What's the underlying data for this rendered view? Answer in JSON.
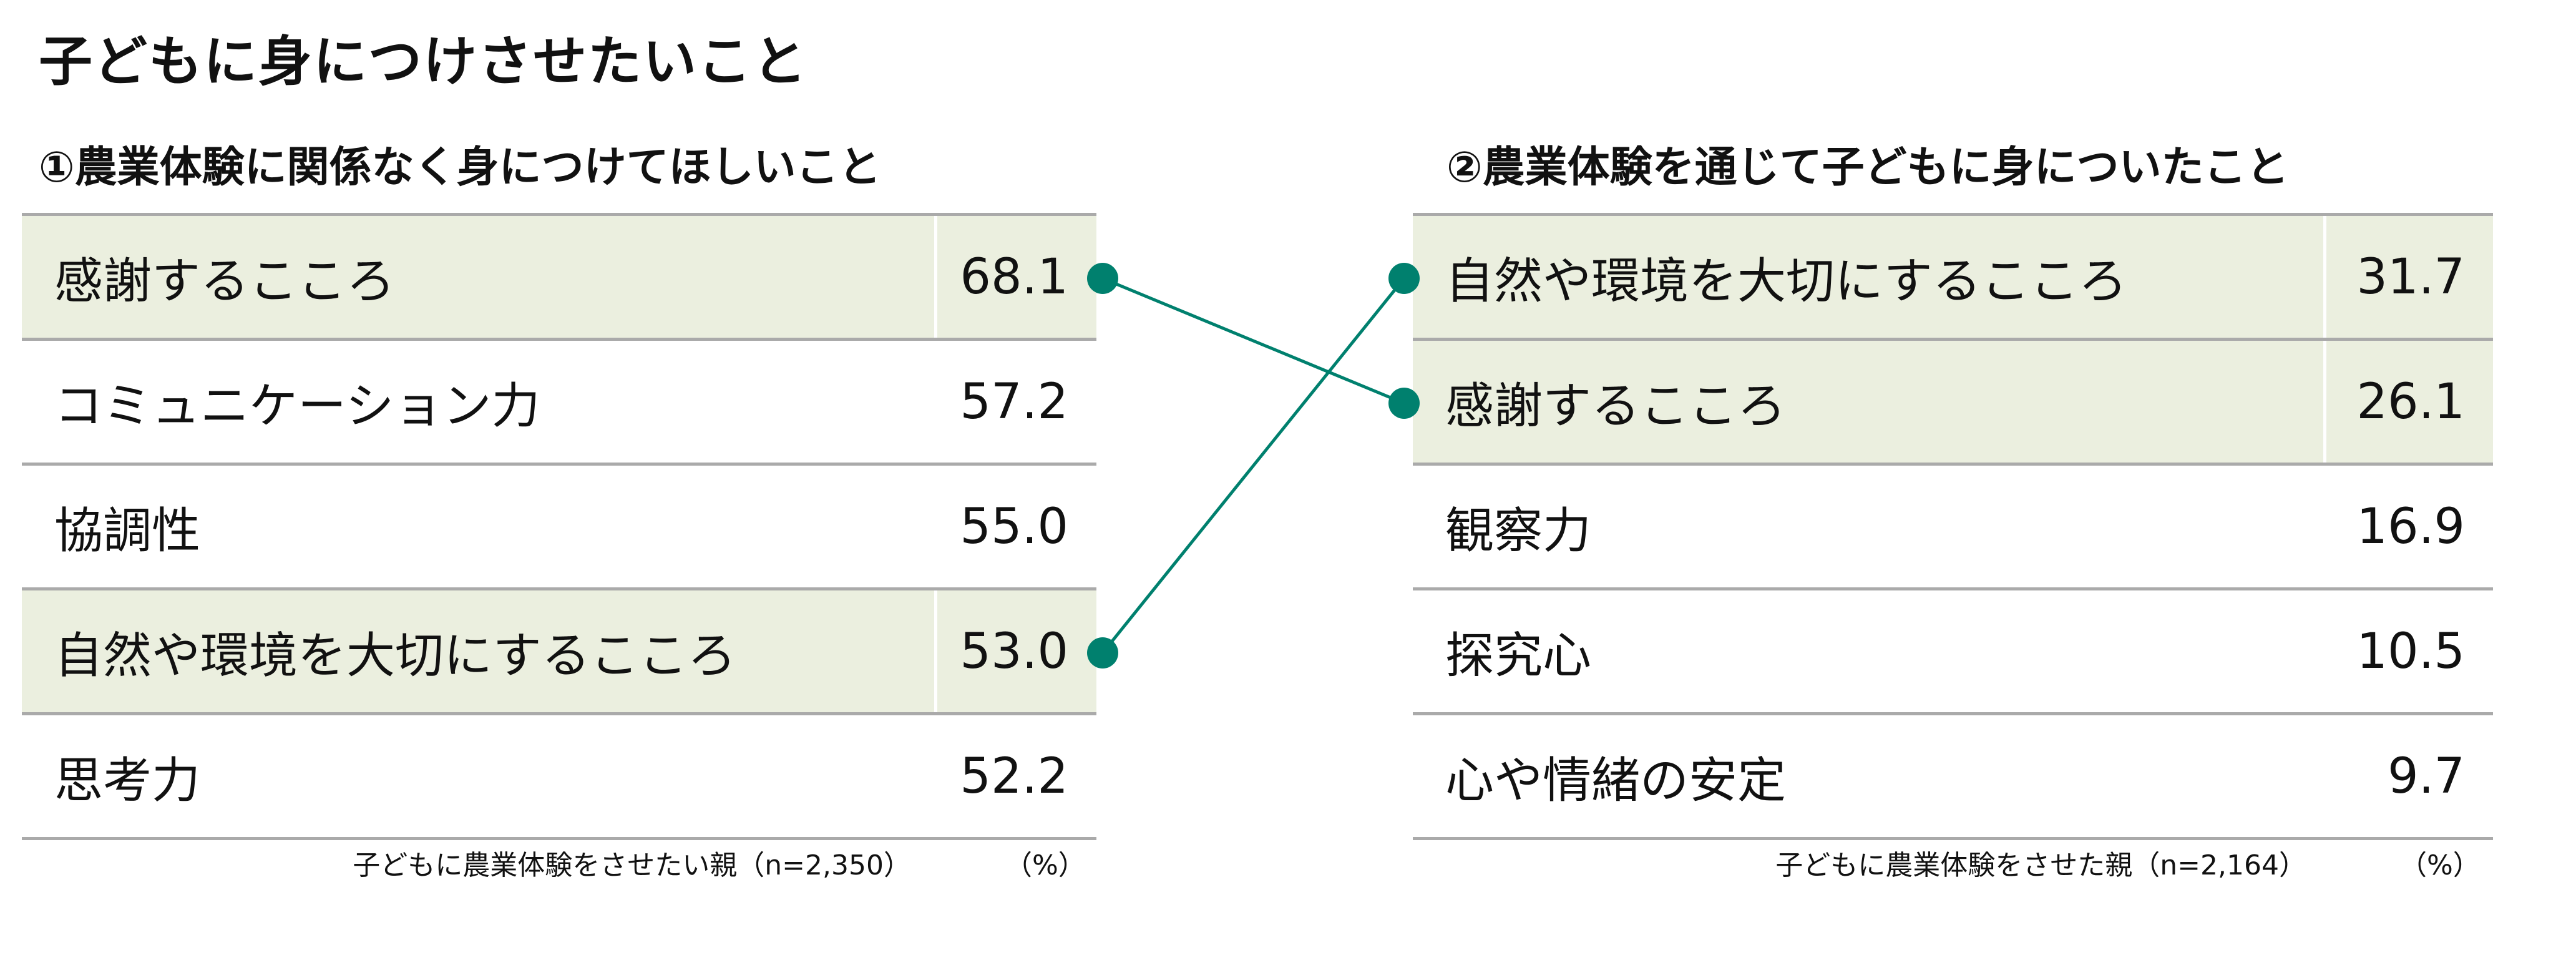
{
  "title": "子どもに身につけさせたいこと",
  "left": {
    "heading": "①農業体験に関係なく身につけてほしいこと",
    "rows": [
      {
        "label": "感謝するこころ",
        "value": "68.1",
        "highlight": true
      },
      {
        "label": "コミュニケーション力",
        "value": "57.2",
        "highlight": false
      },
      {
        "label": "協調性",
        "value": "55.0",
        "highlight": false
      },
      {
        "label": "自然や環境を大切にするこころ",
        "value": "53.0",
        "highlight": true
      },
      {
        "label": "思考力",
        "value": "52.2",
        "highlight": false
      }
    ],
    "note": "子どもに農業体験をさせたい親（n=2,350）",
    "unit": "（%）"
  },
  "right": {
    "heading": "②農業体験を通じて子どもに身についたこと",
    "rows": [
      {
        "label": "自然や環境を大切にするこころ",
        "value": "31.7",
        "highlight": true
      },
      {
        "label": "感謝するこころ",
        "value": "26.1",
        "highlight": true
      },
      {
        "label": "観察力",
        "value": "16.9",
        "highlight": false
      },
      {
        "label": "探究心",
        "value": "10.5",
        "highlight": false
      },
      {
        "label": "心や情緒の安定",
        "value": "9.7",
        "highlight": false
      }
    ],
    "note": "子どもに農業体験をさせた親（n=2,164）",
    "unit": "（%）"
  },
  "connections": [
    {
      "from": "感謝するこころ",
      "to": "感謝するこころ"
    },
    {
      "from": "自然や環境を大切にするこころ",
      "to": "自然や環境を大切にするこころ"
    }
  ],
  "colors": {
    "highlight": "#ebefdf",
    "connector": "#00806e",
    "rule": "#aaaaaa"
  }
}
